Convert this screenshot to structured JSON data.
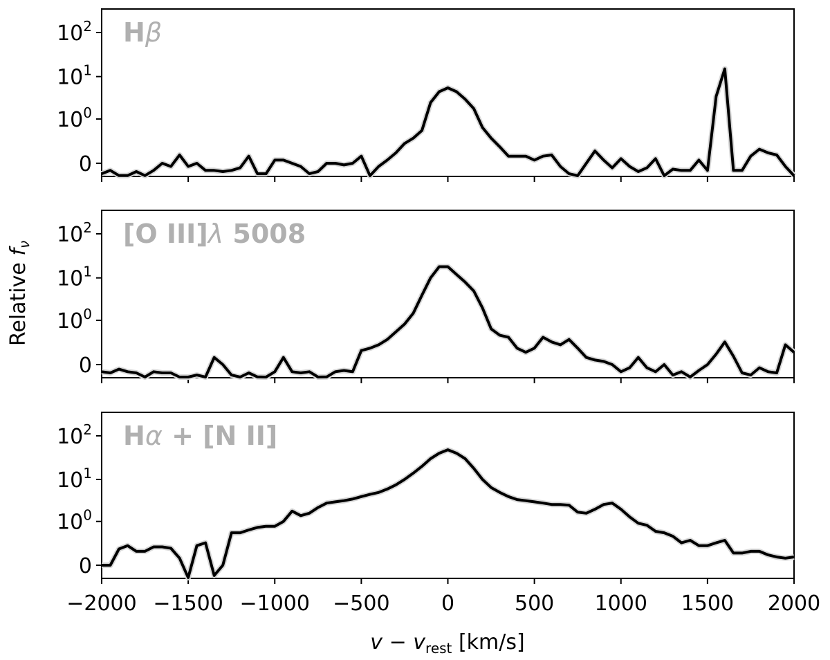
{
  "chart_data": {
    "type": "line",
    "ylabel": {
      "main": "Relative ",
      "sym": "f",
      "sub": "ν"
    },
    "xlabel": {
      "v": "v",
      "minus": " − ",
      "v2": "v",
      "sub": "rest",
      "unit": " [km/s]"
    },
    "xlim": [
      -2000,
      2000
    ],
    "xticks": [
      -2000,
      -1500,
      -1000,
      -500,
      0,
      500,
      1000,
      1500,
      2000
    ],
    "xtick_labels": [
      "−2000",
      "−1500",
      "−1000",
      "−500",
      "0",
      "500",
      "1000",
      "1500",
      "2000"
    ],
    "yscale": "symlog (linear near 0, log above 1)",
    "ylim": [
      -0.3,
      250
    ],
    "yticks": [
      0,
      1,
      10,
      100
    ],
    "color": "#000000",
    "panels": [
      {
        "label": {
          "a": "H",
          "b": "β",
          "c": ""
        },
        "series": {
          "x": [
            -2000,
            -1950,
            -1900,
            -1850,
            -1800,
            -1750,
            -1700,
            -1650,
            -1600,
            -1550,
            -1500,
            -1450,
            -1400,
            -1350,
            -1300,
            -1250,
            -1200,
            -1150,
            -1100,
            -1050,
            -1000,
            -950,
            -900,
            -850,
            -800,
            -750,
            -700,
            -650,
            -600,
            -550,
            -500,
            -450,
            -400,
            -350,
            -300,
            -250,
            -200,
            -150,
            -100,
            -50,
            0,
            50,
            100,
            150,
            200,
            250,
            300,
            350,
            400,
            450,
            500,
            550,
            600,
            650,
            700,
            750,
            800,
            850,
            900,
            950,
            1000,
            1050,
            1100,
            1150,
            1200,
            1250,
            1300,
            1350,
            1400,
            1450,
            1500,
            1550,
            1600,
            1650,
            1700,
            1750,
            1800,
            1850,
            1900,
            1950,
            2000
          ],
          "y": [
            -0.08,
            -0.05,
            -0.1,
            -0.1,
            -0.06,
            -0.1,
            -0.05,
            0.0,
            -0.02,
            0.06,
            -0.02,
            0.0,
            -0.05,
            -0.05,
            -0.06,
            -0.05,
            -0.03,
            0.05,
            -0.08,
            -0.08,
            0.02,
            0.02,
            0.0,
            -0.02,
            -0.08,
            -0.06,
            0.0,
            0.0,
            -0.01,
            0.0,
            0.05,
            -0.12,
            -0.02,
            0.02,
            0.08,
            0.2,
            0.3,
            0.5,
            2.5,
            4.5,
            5.5,
            4.5,
            3.0,
            1.8,
            0.6,
            0.3,
            0.15,
            0.05,
            0.05,
            0.05,
            0.02,
            0.05,
            0.06,
            -0.02,
            -0.08,
            -0.15,
            0.0,
            0.1,
            0.02,
            -0.03,
            0.03,
            -0.02,
            -0.06,
            -0.03,
            0.03,
            -0.12,
            -0.04,
            -0.05,
            -0.05,
            0.02,
            -0.05,
            3.5,
            15,
            -0.05,
            -0.05,
            0.05,
            0.12,
            0.08,
            0.06,
            -0.02,
            -0.15
          ]
        }
      },
      {
        "label": {
          "a": "[O III]",
          "b": "λ",
          "c": " 5008"
        },
        "series": {
          "x": [
            -2000,
            -1950,
            -1900,
            -1850,
            -1800,
            -1750,
            -1700,
            -1650,
            -1600,
            -1550,
            -1500,
            -1450,
            -1400,
            -1350,
            -1300,
            -1250,
            -1200,
            -1150,
            -1100,
            -1050,
            -1000,
            -950,
            -900,
            -850,
            -800,
            -750,
            -700,
            -650,
            -600,
            -550,
            -500,
            -450,
            -400,
            -350,
            -300,
            -250,
            -200,
            -150,
            -100,
            -50,
            0,
            50,
            100,
            150,
            200,
            250,
            300,
            350,
            400,
            450,
            500,
            550,
            600,
            650,
            700,
            750,
            800,
            850,
            900,
            950,
            1000,
            1050,
            1100,
            1150,
            1200,
            1250,
            1300,
            1350,
            1400,
            1450,
            1500,
            1550,
            1600,
            1650,
            1700,
            1750,
            1800,
            1850,
            1900,
            1950,
            2000
          ],
          "y": [
            -0.05,
            -0.06,
            -0.03,
            -0.05,
            -0.06,
            -0.12,
            -0.05,
            -0.06,
            -0.06,
            -0.12,
            -0.12,
            -0.08,
            -0.12,
            0.05,
            0.0,
            -0.08,
            -0.15,
            -0.06,
            -0.1,
            -0.15,
            -0.05,
            0.05,
            -0.05,
            -0.06,
            -0.05,
            -0.12,
            -0.1,
            -0.05,
            -0.04,
            -0.05,
            0.12,
            0.15,
            0.2,
            0.3,
            0.5,
            0.8,
            1.5,
            4,
            10,
            18,
            18,
            12,
            8,
            5,
            2,
            0.6,
            0.4,
            0.35,
            0.15,
            0.1,
            0.15,
            0.35,
            0.25,
            0.2,
            0.3,
            0.15,
            0.05,
            0.03,
            0.02,
            0.0,
            -0.05,
            -0.02,
            0.05,
            -0.02,
            -0.05,
            0.0,
            -0.08,
            -0.05,
            -0.12,
            -0.04,
            0.0,
            0.08,
            0.25,
            0.06,
            -0.06,
            -0.08,
            -0.02,
            -0.05,
            -0.06,
            0.2,
            0.1
          ]
        }
      },
      {
        "label": {
          "a": "H",
          "b": "α",
          "c": " + [N II]"
        },
        "series": {
          "x": [
            -2000,
            -1950,
            -1900,
            -1850,
            -1800,
            -1750,
            -1700,
            -1650,
            -1600,
            -1550,
            -1500,
            -1450,
            -1400,
            -1350,
            -1300,
            -1250,
            -1200,
            -1150,
            -1100,
            -1050,
            -1000,
            -950,
            -900,
            -850,
            -800,
            -750,
            -700,
            -650,
            -600,
            -550,
            -500,
            -450,
            -400,
            -350,
            -300,
            -250,
            -200,
            -150,
            -100,
            -50,
            0,
            50,
            100,
            150,
            200,
            250,
            300,
            350,
            400,
            450,
            500,
            550,
            600,
            650,
            700,
            750,
            800,
            850,
            900,
            950,
            1000,
            1050,
            1100,
            1150,
            1200,
            1250,
            1300,
            1350,
            1400,
            1450,
            1500,
            1550,
            1600,
            1650,
            1700,
            1750,
            1800,
            1850,
            1900,
            1950,
            2000
          ],
          "y": [
            0.0,
            0.0,
            0.15,
            0.2,
            0.12,
            0.12,
            0.18,
            0.18,
            0.16,
            0.05,
            -0.18,
            0.2,
            0.25,
            -0.08,
            0.0,
            0.5,
            0.5,
            0.6,
            0.7,
            0.75,
            0.75,
            1.0,
            1.8,
            1.4,
            1.6,
            2.2,
            2.8,
            3.0,
            3.2,
            3.5,
            4.0,
            4.5,
            5.0,
            6.0,
            7.5,
            10,
            14,
            20,
            30,
            40,
            48,
            40,
            30,
            18,
            10,
            6.5,
            5.0,
            4.0,
            3.4,
            3.2,
            3.0,
            2.8,
            2.6,
            2.6,
            2.5,
            1.7,
            1.6,
            2.0,
            2.6,
            2.8,
            2.0,
            1.3,
            0.9,
            0.8,
            0.55,
            0.5,
            0.4,
            0.25,
            0.3,
            0.2,
            0.2,
            0.25,
            0.3,
            0.1,
            0.1,
            0.12,
            0.12,
            0.08,
            0.06,
            0.05,
            0.06
          ]
        }
      }
    ]
  }
}
